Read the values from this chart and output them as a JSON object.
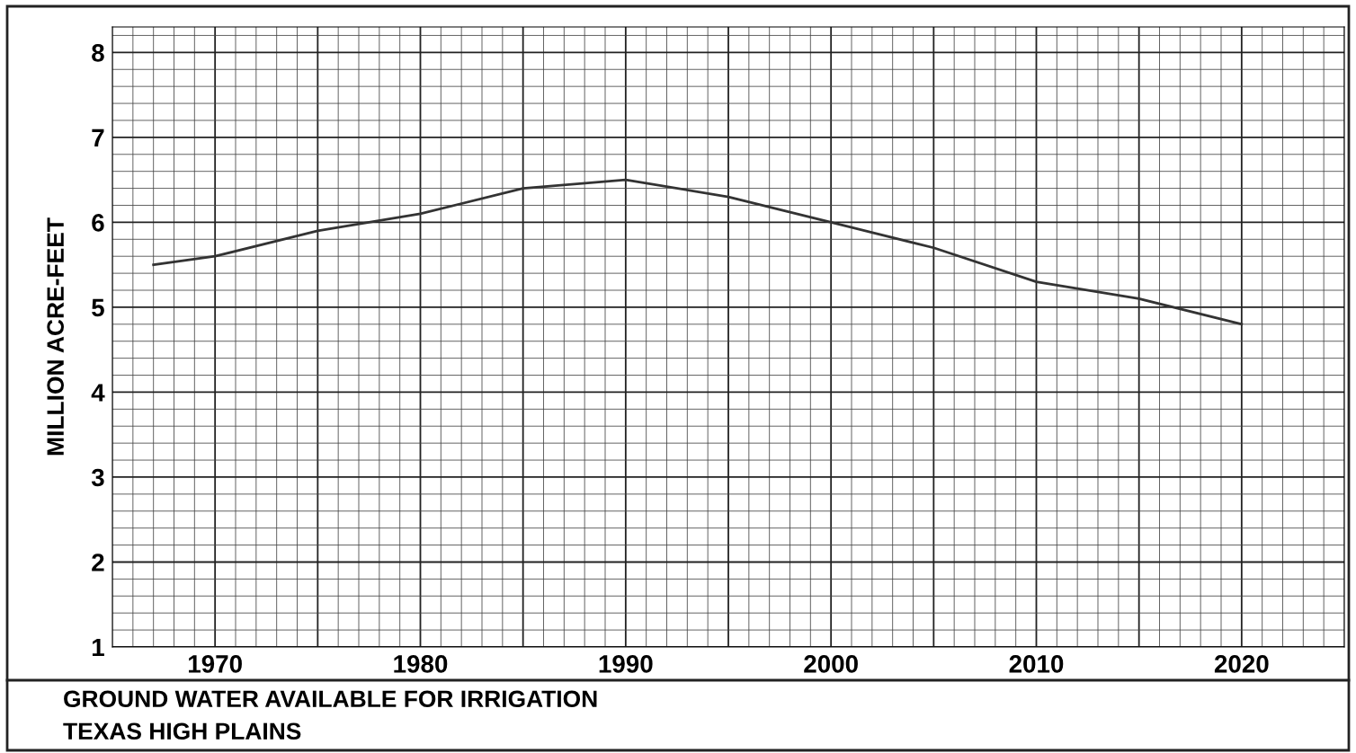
{
  "chart_data": {
    "type": "line",
    "title": "GROUND WATER AVAILABLE FOR IRRIGATION",
    "subtitle": "TEXAS HIGH PLAINS",
    "ylabel": "MILLION ACRE-FEET",
    "x": [
      1967,
      1970,
      1975,
      1980,
      1985,
      1990,
      1995,
      2000,
      2005,
      2010,
      2015,
      2020
    ],
    "series": [
      {
        "color": "#333333",
        "values": [
          5.5,
          5.6,
          5.9,
          6.1,
          6.4,
          6.5,
          6.3,
          6.0,
          5.7,
          5.3,
          5.1,
          4.8
        ]
      }
    ],
    "xlim": [
      1965,
      2025
    ],
    "ylim": [
      1,
      8.3
    ],
    "xticks": [
      1970,
      {
        "value": 1975,
        "label": null
      },
      1980,
      {
        "value": 1985,
        "label": null
      },
      1990,
      {
        "value": 1995,
        "label": null
      },
      2000,
      {
        "value": 2005,
        "label": null
      },
      2010,
      {
        "value": 2015,
        "label": null
      },
      2020
    ],
    "yticks": [
      1,
      2,
      3,
      4,
      5,
      6,
      7,
      8
    ],
    "grid": true,
    "marker": "none",
    "line_style": "solid"
  }
}
